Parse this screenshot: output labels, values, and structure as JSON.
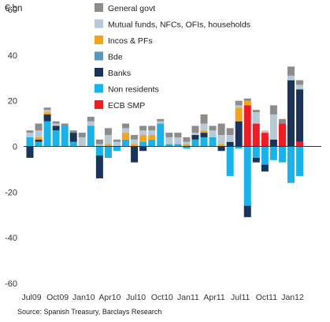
{
  "unit_label": "€ bn",
  "source_note": "Source: Spanish Treasury, Barclays Research",
  "chart_data": {
    "type": "bar",
    "stacked": true,
    "ylim": [
      -60,
      60
    ],
    "yticks": [
      -60,
      -40,
      -20,
      0,
      20,
      40,
      60
    ],
    "xtick_labels": [
      "Jul09",
      "Oct09",
      "Jan10",
      "Apr10",
      "Jul10",
      "Oct10",
      "Jan11",
      "Apr11",
      "Jul11",
      "Oct11",
      "Jan12"
    ],
    "xtick_positions": [
      0,
      3,
      6,
      9,
      12,
      15,
      18,
      21,
      24,
      27,
      30
    ],
    "categories": [
      "Jul09",
      "Aug09",
      "Sep09",
      "Oct09",
      "Nov09",
      "Dec09",
      "Jan10",
      "Feb10",
      "Mar10",
      "Apr10",
      "May10",
      "Jun10",
      "Jul10",
      "Aug10",
      "Sep10",
      "Oct10",
      "Nov10",
      "Dec10",
      "Jan11",
      "Feb11",
      "Mar11",
      "Apr11",
      "May11",
      "Jun11",
      "Jul11",
      "Aug11",
      "Sep11",
      "Oct11",
      "Nov11",
      "Dec11",
      "Jan12",
      "Feb12"
    ],
    "legend_position": "top-left",
    "grid": false,
    "series": [
      {
        "name": "Non residents",
        "color": "#1ab2e8",
        "values": [
          4,
          2,
          11,
          7,
          9,
          2,
          0,
          9,
          -4,
          -5,
          -2,
          3,
          0,
          2,
          3,
          10,
          1,
          1,
          -1,
          3,
          4,
          4,
          0,
          -13,
          -1,
          -26,
          -5,
          -8,
          -6,
          -7,
          -16,
          -13
        ]
      },
      {
        "name": "ECB SMP",
        "color": "#ee1c24",
        "values": [
          0,
          0,
          0,
          0,
          0,
          0,
          0,
          0,
          0,
          0,
          0,
          0,
          0,
          0,
          0,
          0,
          0,
          0,
          0,
          0,
          0,
          0,
          0,
          0,
          0,
          18,
          10,
          6,
          0,
          10,
          0,
          2
        ]
      },
      {
        "name": "Banks",
        "color": "#1a3358",
        "values": [
          -5,
          1,
          3,
          2,
          0,
          4,
          0,
          0,
          -10,
          0,
          0,
          0,
          -7,
          -2,
          0,
          0,
          0,
          0,
          0,
          2,
          2,
          0,
          -2,
          2,
          11,
          -5,
          -2,
          -3,
          3,
          0,
          29,
          23
        ]
      },
      {
        "name": "Bde",
        "color": "#5b97bb",
        "values": [
          0,
          0,
          0,
          0,
          0,
          0,
          0,
          0,
          0,
          0,
          0,
          0,
          0,
          0,
          0,
          0,
          0,
          0,
          0,
          0,
          0,
          0,
          0,
          0,
          0,
          0,
          0,
          0,
          0,
          0,
          0,
          0
        ]
      },
      {
        "name": "Incos & PFs",
        "color": "#f4a31c",
        "values": [
          0,
          1,
          1,
          0,
          0,
          0,
          0,
          0,
          0,
          1,
          0,
          3,
          1,
          3,
          2,
          0,
          0,
          0,
          1,
          0,
          1,
          0,
          1,
          0,
          6,
          2,
          0,
          0,
          0,
          0,
          0,
          0
        ]
      },
      {
        "name": "Mutual funds, NFCs, OFIs, households",
        "color": "#b8c9d6",
        "values": [
          2,
          3,
          1,
          1,
          0,
          0,
          4,
          2,
          1,
          4,
          2,
          2,
          2,
          2,
          2,
          1,
          3,
          3,
          1,
          1,
          3,
          3,
          4,
          3,
          1,
          0,
          5,
          1,
          11,
          0,
          2,
          2
        ]
      },
      {
        "name": "General govt",
        "color": "#8c8c8c",
        "values": [
          1,
          3,
          1,
          1,
          1,
          1,
          2,
          2,
          2,
          3,
          1,
          2,
          2,
          2,
          2,
          1,
          2,
          2,
          2,
          3,
          4,
          2,
          5,
          3,
          2,
          1,
          1,
          0,
          4,
          2,
          4,
          2
        ]
      }
    ],
    "legend_order": [
      "General govt",
      "Mutual funds, NFCs, OFIs, households",
      "Incos & PFs",
      "Bde",
      "Banks",
      "Non residents",
      "ECB SMP"
    ]
  }
}
